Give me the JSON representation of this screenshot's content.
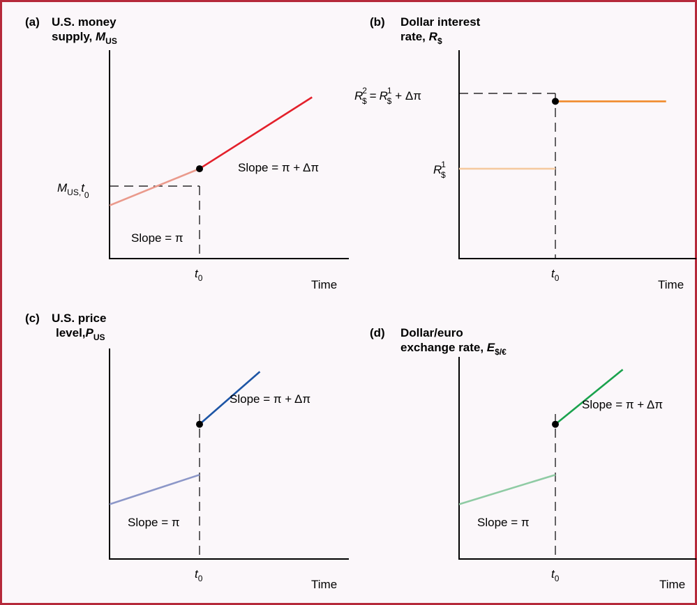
{
  "chart_data": [
    {
      "type": "line",
      "panel_label": "(a)",
      "title_line1": "U.S. money",
      "title_line2_prefix": "supply,",
      "title_var": "M",
      "title_sub": "US",
      "xlabel": "Time",
      "x_tick": {
        "base": "t",
        "sub": "0"
      },
      "y_marker": {
        "base": "M",
        "sub": "US,",
        "var2": "t",
        "sub2": "0",
        "value": 4.4
      },
      "segments": [
        {
          "name": "before",
          "color": "#ea9a8c",
          "x": [
            0,
            1
          ],
          "y": [
            2.6,
            4.4
          ]
        },
        {
          "name": "after",
          "color": "#e3202b",
          "x": [
            1,
            2.25
          ],
          "y": [
            4.4,
            7.9
          ]
        }
      ],
      "annotations": [
        {
          "text": "Slope = π",
          "x": 0.23,
          "y": 1.6
        },
        {
          "text": "Slope = π + Δπ",
          "x": 1.45,
          "y": 5.0
        }
      ],
      "point": {
        "x": 1,
        "y": 4.4
      },
      "xlim": [
        0,
        2.6
      ],
      "ylim": [
        0,
        10
      ]
    },
    {
      "type": "line",
      "panel_label": "(b)",
      "title_line1": "Dollar interest",
      "title_line2_prefix": "rate,",
      "title_var": "R",
      "title_sub": "$",
      "xlabel": "Time",
      "x_tick": {
        "base": "t",
        "sub": "0"
      },
      "y_marker_low": {
        "base": "R",
        "sub": "$",
        "sup": "1",
        "value": 4.4
      },
      "y_marker_high": {
        "base": "R",
        "sub": "$",
        "sup": "2",
        "eq": "=",
        "base2": "R",
        "sub2": "$",
        "sup2": "1",
        "tail": "+ Δπ",
        "value": 7.7
      },
      "segments": [
        {
          "name": "before",
          "color": "#f5caa0",
          "x": [
            0,
            1
          ],
          "y": [
            4.4,
            4.4
          ]
        },
        {
          "name": "after",
          "color": "#f08a2a",
          "x": [
            1,
            2.15
          ],
          "y": [
            7.7,
            7.7
          ]
        }
      ],
      "point": {
        "x": 1,
        "y": 7.7
      },
      "xlim": [
        0,
        2.6
      ],
      "ylim": [
        0,
        10
      ]
    },
    {
      "type": "line",
      "panel_label": "(c)",
      "title_line1": "U.S. price",
      "title_line2_prefix": "level,",
      "title_var": "P",
      "title_sub": "US",
      "xlabel": "Time",
      "x_tick": {
        "base": "t",
        "sub": "0"
      },
      "segments": [
        {
          "name": "before",
          "color": "#8c97c8",
          "x": [
            0,
            1
          ],
          "y": [
            2.6,
            4.0
          ]
        },
        {
          "name": "after",
          "color": "#1d55a5",
          "x": [
            1,
            1.67
          ],
          "y": [
            6.4,
            8.9
          ]
        }
      ],
      "annotations": [
        {
          "text": "Slope = π",
          "x": 0.2,
          "y": 1.65
        },
        {
          "text": "Slope = π + Δπ",
          "x": 1.35,
          "y": 7.15
        }
      ],
      "point": {
        "x": 1,
        "y": 6.4
      },
      "xlim": [
        0,
        2.6
      ],
      "ylim": [
        0,
        10
      ]
    },
    {
      "type": "line",
      "panel_label": "(d)",
      "title_line1": "Dollar/euro",
      "title_line2_prefix": "exchange rate,",
      "title_var": "E",
      "title_sub": "$/€",
      "xlabel": "Time",
      "x_tick": {
        "base": "t",
        "sub": "0"
      },
      "segments": [
        {
          "name": "before",
          "color": "#8fcba4",
          "x": [
            0,
            1
          ],
          "y": [
            2.6,
            4.0
          ]
        },
        {
          "name": "after",
          "color": "#1aa24d",
          "x": [
            1,
            1.7
          ],
          "y": [
            6.4,
            9.0
          ]
        }
      ],
      "annotations": [
        {
          "text": "Slope = π",
          "x": 0.2,
          "y": 1.65
        },
        {
          "text": "Slope = π + Δπ",
          "x": 1.3,
          "y": 6.8
        }
      ],
      "point": {
        "x": 1,
        "y": 6.4
      },
      "xlim": [
        0,
        2.6
      ],
      "ylim": [
        0,
        10
      ]
    }
  ],
  "colors": {
    "frame": "#b5293a",
    "background": "#fbf7fa",
    "axis": "#000000"
  }
}
